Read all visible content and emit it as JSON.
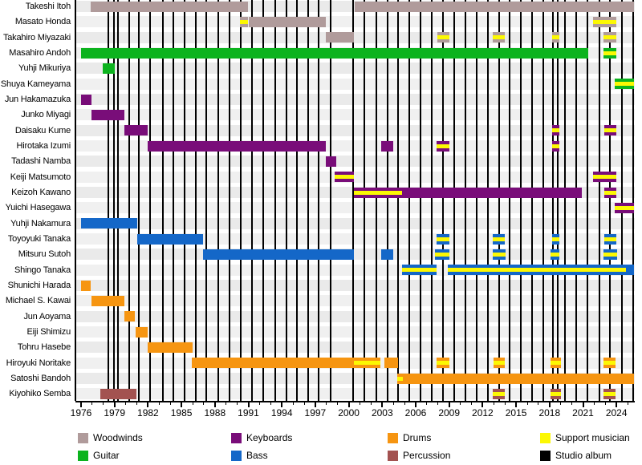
{
  "chart_data": {
    "type": "bar",
    "subtype": "timeline-gantt-band-membership",
    "title": "",
    "x_axis": {
      "min_year": 1975.5,
      "max_year": 2025.6,
      "tick_label_years": [
        1976,
        1979,
        1982,
        1985,
        1988,
        1991,
        1994,
        1997,
        2000,
        2003,
        2006,
        2009,
        2012,
        2015,
        2018,
        2021,
        2024
      ],
      "minor_tick_start": 1976,
      "minor_tick_end": 2025,
      "minor_tick_step": 1
    },
    "colors": {
      "woodwinds": "#b09b9b",
      "guitar": "#0cb31e",
      "keyboards": "#790d79",
      "bass": "#1467c8",
      "drums": "#f69511",
      "percussion": "#a35250",
      "support": "#fcf803",
      "album_line": "#000000",
      "band_odd": "#eaeaea",
      "band_even": "#f0f0f0"
    },
    "legend": [
      {
        "label": "Woodwinds",
        "color_key": "woodwinds"
      },
      {
        "label": "Guitar",
        "color_key": "guitar"
      },
      {
        "label": "Keyboards",
        "color_key": "keyboards"
      },
      {
        "label": "Bass",
        "color_key": "bass"
      },
      {
        "label": "Drums",
        "color_key": "drums"
      },
      {
        "label": "Percussion",
        "color_key": "percussion"
      },
      {
        "label": "Support musician",
        "color_key": "support"
      },
      {
        "label": "Studio album",
        "color_key": "album_line"
      }
    ],
    "album_line_years": [
      1978.45,
      1978.95,
      1979.3,
      1980.3,
      1981.2,
      1982.2,
      1983.35,
      1984.25,
      1985.3,
      1986.3,
      1987.25,
      1988.3,
      1989.3,
      1990.3,
      1991.3,
      1992.35,
      1993.4,
      1994.4,
      1995.35,
      1996.35,
      1997.3,
      1998.35,
      2000.4,
      2001.4,
      2002.45,
      2003.5,
      2004.45,
      2005.45,
      2006.45,
      2007.45,
      2008.45,
      2009.45,
      2010.45,
      2011.45,
      2012.45,
      2013.45,
      2014.45,
      2015.45,
      2016.4,
      2017.45,
      2018.3,
      2018.75,
      2019.35,
      2020.4,
      2021.4,
      2022.45,
      2023.4,
      2024.5,
      2025.5
    ],
    "members": [
      {
        "name": "Takeshi Itoh",
        "instrument": "woodwinds",
        "segments": [
          {
            "start": 1976.85,
            "end": 1991.0,
            "support": false
          },
          {
            "start": 2000.5,
            "end": 2025.55,
            "support": false
          }
        ]
      },
      {
        "name": "Masato Honda",
        "instrument": "woodwinds",
        "segments": [
          {
            "start": 1990.25,
            "end": 1991.0,
            "support": true
          },
          {
            "start": 1991.0,
            "end": 1997.95,
            "support": false
          },
          {
            "start": 2021.9,
            "end": 2024.0,
            "support": true
          }
        ]
      },
      {
        "name": "Takahiro Miyazaki",
        "instrument": "woodwinds",
        "segments": [
          {
            "start": 1997.95,
            "end": 2000.45,
            "support": false
          },
          {
            "start": 2007.95,
            "end": 2009.0,
            "support": true
          },
          {
            "start": 2012.9,
            "end": 2013.95,
            "support": true
          },
          {
            "start": 2018.2,
            "end": 2018.9,
            "support": true
          },
          {
            "start": 2022.85,
            "end": 2024.0,
            "support": true
          }
        ]
      },
      {
        "name": "Masahiro Andoh",
        "instrument": "guitar",
        "segments": [
          {
            "start": 1976.0,
            "end": 2021.5,
            "support": false
          },
          {
            "start": 2022.85,
            "end": 2024.0,
            "support": true
          }
        ]
      },
      {
        "name": "Yuhji Mikuriya",
        "instrument": "guitar",
        "segments": [
          {
            "start": 1977.95,
            "end": 1979.0,
            "support": false
          }
        ]
      },
      {
        "name": "Shuya Kameyama",
        "instrument": "guitar",
        "segments": [
          {
            "start": 2023.85,
            "end": 2025.55,
            "support": true
          }
        ]
      },
      {
        "name": "Jun Hakamazuka",
        "instrument": "keyboards",
        "segments": [
          {
            "start": 1976.0,
            "end": 1976.9,
            "support": false
          }
        ]
      },
      {
        "name": "Junko Miyagi",
        "instrument": "keyboards",
        "segments": [
          {
            "start": 1976.95,
            "end": 1979.9,
            "support": false
          }
        ]
      },
      {
        "name": "Daisaku Kume",
        "instrument": "keyboards",
        "segments": [
          {
            "start": 1979.9,
            "end": 1982.0,
            "support": false
          },
          {
            "start": 2018.2,
            "end": 2018.9,
            "support": true
          },
          {
            "start": 2022.9,
            "end": 2024.0,
            "support": true
          }
        ]
      },
      {
        "name": "Hirotaka Izumi",
        "instrument": "keyboards",
        "segments": [
          {
            "start": 1982.0,
            "end": 1997.95,
            "support": false
          },
          {
            "start": 2002.9,
            "end": 2004.0,
            "support": false
          },
          {
            "start": 2007.9,
            "end": 2009.0,
            "support": true
          },
          {
            "start": 2018.2,
            "end": 2018.9,
            "support": true
          }
        ]
      },
      {
        "name": "Tadashi Namba",
        "instrument": "keyboards",
        "segments": [
          {
            "start": 1997.95,
            "end": 1998.85,
            "support": false
          }
        ]
      },
      {
        "name": "Keiji Matsumoto",
        "instrument": "keyboards",
        "segments": [
          {
            "start": 1998.7,
            "end": 2000.45,
            "support": true
          },
          {
            "start": 2021.9,
            "end": 2024.0,
            "support": true
          }
        ]
      },
      {
        "name": "Keizoh Kawano",
        "instrument": "keyboards",
        "segments": [
          {
            "start": 2000.45,
            "end": 2004.8,
            "support": true
          },
          {
            "start": 2004.8,
            "end": 2020.9,
            "support": false
          },
          {
            "start": 2022.9,
            "end": 2024.0,
            "support": true
          }
        ]
      },
      {
        "name": "Yuichi Hasegawa",
        "instrument": "keyboards",
        "segments": [
          {
            "start": 2023.85,
            "end": 2025.55,
            "support": true
          }
        ]
      },
      {
        "name": "Yuhji Nakamura",
        "instrument": "bass",
        "segments": [
          {
            "start": 1976.0,
            "end": 1981.0,
            "support": false
          }
        ]
      },
      {
        "name": "Toyoyuki Tanaka",
        "instrument": "bass",
        "segments": [
          {
            "start": 1981.0,
            "end": 1986.9,
            "support": false
          },
          {
            "start": 2007.9,
            "end": 2009.0,
            "support": true
          },
          {
            "start": 2012.9,
            "end": 2014.0,
            "support": true
          },
          {
            "start": 2018.2,
            "end": 2018.9,
            "support": true
          },
          {
            "start": 2022.9,
            "end": 2024.0,
            "support": true
          }
        ]
      },
      {
        "name": "Mitsuru Sutoh",
        "instrument": "bass",
        "segments": [
          {
            "start": 1986.9,
            "end": 2000.45,
            "support": false
          },
          {
            "start": 2002.9,
            "end": 2004.0,
            "support": false
          },
          {
            "start": 2007.75,
            "end": 2009.0,
            "support": true
          },
          {
            "start": 2012.9,
            "end": 2014.05,
            "support": true
          },
          {
            "start": 2018.1,
            "end": 2018.9,
            "support": true
          },
          {
            "start": 2022.85,
            "end": 2024.05,
            "support": true
          }
        ]
      },
      {
        "name": "Shingo Tanaka",
        "instrument": "bass",
        "segments": [
          {
            "start": 2004.8,
            "end": 2007.9,
            "support": true
          },
          {
            "start": 2008.9,
            "end": 2024.85,
            "support": true
          },
          {
            "start": 2024.85,
            "end": 2025.55,
            "support": false
          }
        ]
      },
      {
        "name": "Shunichi Harada",
        "instrument": "drums",
        "segments": [
          {
            "start": 1976.0,
            "end": 1976.85,
            "support": false
          }
        ]
      },
      {
        "name": "Michael S. Kawai",
        "instrument": "drums",
        "segments": [
          {
            "start": 1976.9,
            "end": 1979.9,
            "support": false
          }
        ]
      },
      {
        "name": "Jun Aoyama",
        "instrument": "drums",
        "segments": [
          {
            "start": 1979.9,
            "end": 1980.85,
            "support": false
          }
        ]
      },
      {
        "name": "Eiji Shimizu",
        "instrument": "drums",
        "segments": [
          {
            "start": 1980.9,
            "end": 1981.95,
            "support": false
          }
        ]
      },
      {
        "name": "Tohru Hasebe",
        "instrument": "drums",
        "segments": [
          {
            "start": 1981.95,
            "end": 1986.0,
            "support": false
          }
        ]
      },
      {
        "name": "Hiroyuki Noritake",
        "instrument": "drums",
        "segments": [
          {
            "start": 1985.95,
            "end": 2000.45,
            "support": false
          },
          {
            "start": 2000.45,
            "end": 2002.8,
            "support": true
          },
          {
            "start": 2003.2,
            "end": 2004.45,
            "support": false
          },
          {
            "start": 2007.9,
            "end": 2009.0,
            "support": true
          },
          {
            "start": 2013.0,
            "end": 2014.0,
            "support": true
          },
          {
            "start": 2018.1,
            "end": 2019.0,
            "support": true
          },
          {
            "start": 2022.8,
            "end": 2023.9,
            "support": true
          }
        ]
      },
      {
        "name": "Satoshi Bandoh",
        "instrument": "drums",
        "segments": [
          {
            "start": 2004.35,
            "end": 2004.85,
            "support": true
          },
          {
            "start": 2004.85,
            "end": 2025.55,
            "support": false
          }
        ]
      },
      {
        "name": "Kiyohiko Semba",
        "instrument": "percussion",
        "segments": [
          {
            "start": 1977.75,
            "end": 1981.0,
            "support": false
          },
          {
            "start": 2012.9,
            "end": 2014.0,
            "support": true
          },
          {
            "start": 2018.1,
            "end": 2019.0,
            "support": true
          },
          {
            "start": 2022.8,
            "end": 2023.9,
            "support": true
          }
        ]
      }
    ]
  }
}
